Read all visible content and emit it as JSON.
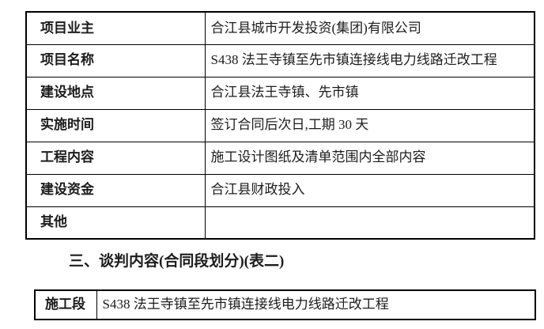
{
  "page": {
    "background_color": "#ffffff",
    "text_color": "#1c1c1c",
    "border_color": "#000000"
  },
  "table1": {
    "rows": [
      {
        "label": "项目业主",
        "value": "合江县城市开发投资(集团)有限公司"
      },
      {
        "label": "项目名称",
        "value": "S438 法王寺镇至先市镇连接线电力线路迁改工程"
      },
      {
        "label": "建设地点",
        "value": "合江县法王寺镇、先市镇"
      },
      {
        "label": "实施时间",
        "value": "签订合同后次日,工期 30 天"
      },
      {
        "label": "工程内容",
        "value": "施工设计图纸及清单范围内全部内容"
      },
      {
        "label": "建设资金",
        "value": "合江县财政投入"
      },
      {
        "label": "其他",
        "value": ""
      }
    ]
  },
  "section_heading": "三、谈判内容(合同段划分)(表二)",
  "table2": {
    "rows": [
      {
        "label": "施工段",
        "value": "S438 法王寺镇至先市镇连接线电力线路迁改工程"
      }
    ]
  }
}
